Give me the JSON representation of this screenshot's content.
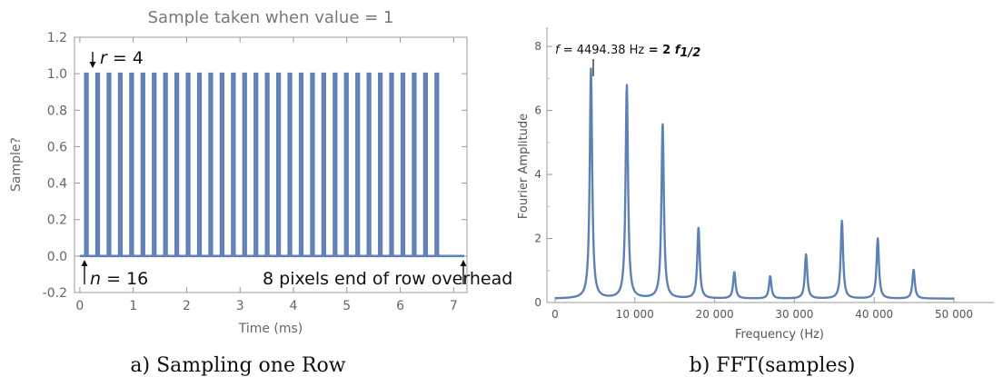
{
  "colors": {
    "series": "#5e81b5",
    "axis": "#999999",
    "text": "#666666"
  },
  "chart_data": [
    {
      "type": "line",
      "title": "Sample taken when value = 1",
      "xlabel": "Time (ms)",
      "ylabel": "Sample?",
      "xlim": [
        -0.1,
        7.25
      ],
      "ylim": [
        -0.2,
        1.2
      ],
      "x_ticks": [
        0,
        1,
        2,
        3,
        4,
        5,
        6,
        7
      ],
      "y_ticks": [
        "-0.2",
        "0.0",
        "0.2",
        "0.4",
        "0.6",
        "0.8",
        "1.0",
        "1.2"
      ],
      "pulses": {
        "count": 32,
        "first_time_ms": 0.1,
        "period_ms": 0.2117,
        "width_ms": 0.045,
        "high": 1.0,
        "low": 0.0,
        "end_ms": 7.2
      },
      "annotations": {
        "r_var": "r",
        "r_text": " = 4",
        "n_var": "n",
        "n_text": " = 16",
        "overhead_text": "8 pixels end of row overhead"
      },
      "caption": "a) Sampling one Row",
      "grid": false
    },
    {
      "type": "line",
      "xlabel": "Frequency (Hz)",
      "ylabel": "Fourier Amplitude",
      "xlim": [
        0,
        50000
      ],
      "ylim": [
        0,
        8.6
      ],
      "x_ticks": [
        "0",
        "10 000",
        "20 000",
        "30 000",
        "40 000",
        "50 000"
      ],
      "y_ticks": [
        "0",
        "2",
        "4",
        "6",
        "8"
      ],
      "peaks": [
        {
          "x": 4494.38,
          "y": 7.3
        },
        {
          "x": 8988.76,
          "y": 6.8
        },
        {
          "x": 13483.1,
          "y": 5.6
        },
        {
          "x": 17977.5,
          "y": 2.35
        },
        {
          "x": 22471.9,
          "y": 0.95
        },
        {
          "x": 26966.3,
          "y": 0.82
        },
        {
          "x": 31460.7,
          "y": 1.5
        },
        {
          "x": 35955.1,
          "y": 2.55
        },
        {
          "x": 40449.4,
          "y": 2.0
        },
        {
          "x": 44943.8,
          "y": 1.02
        }
      ],
      "baseline": 0.12,
      "annotation": {
        "f_var": "f",
        "f_text": " = 4494.38 Hz",
        "rhs_text": " = 2 ",
        "rhs_var": "f",
        "rhs_sub": "1/2"
      },
      "caption": "b) FFT(samples)",
      "grid": false
    }
  ]
}
